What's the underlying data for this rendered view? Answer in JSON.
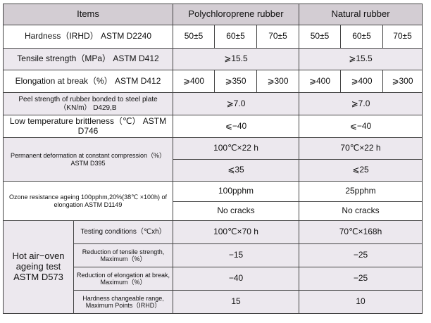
{
  "header": {
    "items": "Items",
    "polychloroprene": "Polychloroprene rubber",
    "natural": "Natural rubber"
  },
  "rows": {
    "hardness": {
      "label": "Hardness（IRHD） ASTM D2240",
      "pc": [
        "50±5",
        "60±5",
        "70±5"
      ],
      "nr": [
        "50±5",
        "60±5",
        "70±5"
      ]
    },
    "tensile": {
      "label": "Tensile strength（MPa） ASTM D412",
      "pc": "⩾15.5",
      "nr": "⩾15.5"
    },
    "elongation": {
      "label": "Elongation at break（%） ASTM D412",
      "pc": [
        "⩾400",
        "⩾350",
        "⩾300"
      ],
      "nr": [
        "⩾400",
        "⩾400",
        "⩾300"
      ]
    },
    "peel": {
      "label": "Peel strength of rubber bonded to steel plate（KN/m） D429,B",
      "pc": "⩾7.0",
      "nr": "⩾7.0"
    },
    "low_temp": {
      "label": "Low temperature brittleness（℃） ASTM D746",
      "pc": "⩽−40",
      "nr": "⩽−40"
    },
    "perm_def": {
      "label": "Permanent deformation at constant compression（%） ASTM D395",
      "pc_cond": "100℃×22 h",
      "nr_cond": "70℃×22 h",
      "pc_val": "⩽35",
      "nr_val": "⩽25"
    },
    "ozone": {
      "label": "Ozone resistance ageing 100pphm,20%(38℃ ×100h) of elongation ASTM D1149",
      "pc_cond": "100pphm",
      "nr_cond": "25pphm",
      "pc_val": "No cracks",
      "nr_val": "No cracks"
    },
    "hot_air": {
      "label": "Hot air−oven ageing test ASTM D573",
      "sub": [
        {
          "label": "Testing conditions（℃xh）",
          "pc": "100℃×70 h",
          "nr": "70℃×168h"
        },
        {
          "label": "Reduction of tensile strength, Maximum（%）",
          "pc": "−15",
          "nr": "−25"
        },
        {
          "label": "Reduction of elongation at break, Maximum（%）",
          "pc": "−40",
          "nr": "−25"
        },
        {
          "label": "Hardness changeable range, Maximum Points（IRHD）",
          "pc": "15",
          "nr": "10"
        }
      ]
    }
  }
}
